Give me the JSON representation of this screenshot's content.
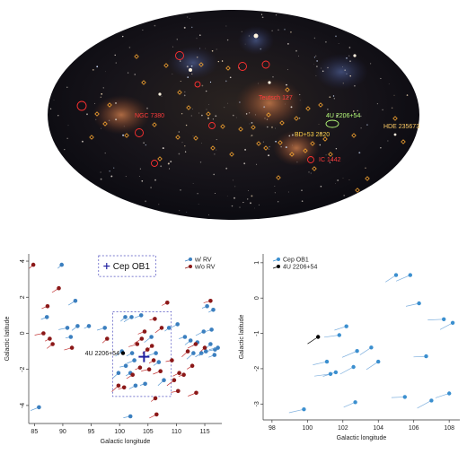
{
  "sky_map": {
    "labels": [
      {
        "text": "Teutsch 127",
        "color": "#ff3b3b"
      },
      {
        "text": "NGC 7380",
        "color": "#ff3b3b"
      },
      {
        "text": "4U 2206+54",
        "color": "#b8ff7a"
      },
      {
        "text": "BD+53 2820",
        "color": "#ffd24a"
      },
      {
        "text": "HDE 235673",
        "color": "#ffcc66"
      },
      {
        "text": "IC 1442",
        "color": "#ff3b3b"
      }
    ],
    "circle_color": "#ff3030",
    "diamond_color": "#f0a030"
  },
  "chart_data": [
    {
      "type": "scatter",
      "xlabel": "Galactic longitude",
      "ylabel": "Galactic latitude",
      "xlim": [
        84,
        118
      ],
      "ylim": [
        -5,
        4.4
      ],
      "xticks": [
        85,
        90,
        95,
        100,
        105,
        110,
        115
      ],
      "yticks": [
        -4,
        -2,
        0,
        2,
        4
      ],
      "legend": {
        "position": "top-right",
        "entries": [
          "w/ RV",
          "w/o RV"
        ]
      },
      "box_label": "Cep OB1",
      "annotation": "4U 2206+54",
      "cep_ob1_center": [
        104.3,
        -1.3
      ],
      "cep_box": {
        "x": [
          98.8,
          109.1
        ],
        "y": [
          -3.5,
          1.2
        ]
      },
      "legend_box": {
        "x": [
          96.3,
          106.4
        ],
        "y": [
          3.15,
          4.3
        ]
      },
      "target": [
        100.6,
        -1.1
      ],
      "series": [
        {
          "name": "w/ RV",
          "color": "#3b7fbf",
          "points": [
            [
              89.8,
              3.8
            ],
            [
              92.2,
              1.8
            ],
            [
              87.2,
              0.9
            ],
            [
              90.8,
              0.3
            ],
            [
              92.6,
              0.4
            ],
            [
              94.6,
              0.4
            ],
            [
              97.4,
              0.3
            ],
            [
              101.0,
              0.9
            ],
            [
              102.1,
              0.9
            ],
            [
              103.8,
              1.0
            ],
            [
              91.4,
              -0.2
            ],
            [
              100.4,
              -1.0
            ],
            [
              102.2,
              -1.1
            ],
            [
              106.4,
              -1.1
            ],
            [
              99.8,
              -2.2
            ],
            [
              101.9,
              -2.2
            ],
            [
              102.6,
              -1.5
            ],
            [
              101.1,
              -1.8
            ],
            [
              105.6,
              -0.2
            ],
            [
              102.8,
              -2.9
            ],
            [
              104.5,
              -2.8
            ],
            [
              107.8,
              -2.6
            ],
            [
              106.9,
              -1.6
            ],
            [
              85.8,
              -4.1
            ],
            [
              101.9,
              -4.6
            ],
            [
              108.7,
              0.3
            ],
            [
              110.2,
              0.5
            ],
            [
              111.5,
              -0.2
            ],
            [
              113.0,
              -1.1
            ],
            [
              114.4,
              -1.1
            ],
            [
              115.4,
              1.5
            ],
            [
              116.8,
              -0.9
            ],
            [
              113.7,
              -0.5
            ],
            [
              114.8,
              0.1
            ],
            [
              116.2,
              0.2
            ],
            [
              116.0,
              -0.6
            ],
            [
              115.2,
              -1.0
            ],
            [
              116.7,
              -1.2
            ],
            [
              117.3,
              -0.8
            ],
            [
              112.5,
              -0.4
            ],
            [
              116.5,
              1.3
            ]
          ]
        },
        {
          "name": "w/o RV",
          "color": "#8b1818",
          "points": [
            [
              84.8,
              3.8
            ],
            [
              89.3,
              2.5
            ],
            [
              87.3,
              1.5
            ],
            [
              86.6,
              0.0
            ],
            [
              88.2,
              -0.6
            ],
            [
              87.7,
              -0.3
            ],
            [
              91.6,
              -0.8
            ],
            [
              97.8,
              -0.3
            ],
            [
              103.9,
              -0.3
            ],
            [
              104.4,
              0.1
            ],
            [
              106.2,
              0.8
            ],
            [
              107.4,
              0.3
            ],
            [
              108.4,
              1.7
            ],
            [
              103.1,
              -0.6
            ],
            [
              105.7,
              -0.7
            ],
            [
              106.0,
              -1.5
            ],
            [
              107.2,
              -2.1
            ],
            [
              109.2,
              -1.5
            ],
            [
              109.6,
              -2.6
            ],
            [
              110.5,
              -2.2
            ],
            [
              111.3,
              -2.3
            ],
            [
              112.0,
              -1.0
            ],
            [
              112.8,
              -1.8
            ],
            [
              113.5,
              -3.3
            ],
            [
              110.3,
              -3.2
            ],
            [
              106.3,
              -3.6
            ],
            [
              106.5,
              -4.5
            ],
            [
              100.8,
              -3.0
            ],
            [
              99.8,
              -2.9
            ],
            [
              102.3,
              -2.3
            ],
            [
              103.6,
              -1.9
            ],
            [
              105.2,
              -2.0
            ],
            [
              104.9,
              -0.9
            ],
            [
              113.4,
              -0.6
            ],
            [
              116.0,
              1.8
            ],
            [
              115.0,
              -0.8
            ]
          ]
        }
      ]
    },
    {
      "type": "scatter",
      "xlabel": "Galactic longitude",
      "ylabel": "Galactic latitude",
      "xlim": [
        97.5,
        108.6
      ],
      "ylim": [
        -3.45,
        1.25
      ],
      "xticks": [
        98,
        100,
        102,
        104,
        106,
        108
      ],
      "yticks": [
        -3,
        -2,
        -1,
        0,
        1
      ],
      "legend": {
        "position": "top-left",
        "entries": [
          "Cep OB1",
          "4U 2206+54"
        ]
      },
      "series": [
        {
          "name": "Cep OB1",
          "color": "#3b8fcf",
          "points": [
            [
              105.0,
              0.65
            ],
            [
              105.8,
              0.65
            ],
            [
              106.3,
              -0.15
            ],
            [
              107.7,
              -0.6
            ],
            [
              108.2,
              -0.7
            ],
            [
              102.2,
              -0.8
            ],
            [
              101.8,
              -1.05
            ],
            [
              103.6,
              -1.4
            ],
            [
              102.8,
              -1.5
            ],
            [
              101.1,
              -1.8
            ],
            [
              106.7,
              -1.65
            ],
            [
              102.6,
              -1.95
            ],
            [
              101.6,
              -2.1
            ],
            [
              101.3,
              -2.15
            ],
            [
              104.0,
              -1.8
            ],
            [
              102.7,
              -2.95
            ],
            [
              99.8,
              -3.15
            ],
            [
              105.5,
              -2.8
            ],
            [
              107.0,
              -2.9
            ],
            [
              108.0,
              -2.7
            ]
          ]
        },
        {
          "name": "4U 2206+54",
          "color": "#000000",
          "points": [
            [
              100.6,
              -1.1
            ]
          ]
        }
      ]
    }
  ]
}
